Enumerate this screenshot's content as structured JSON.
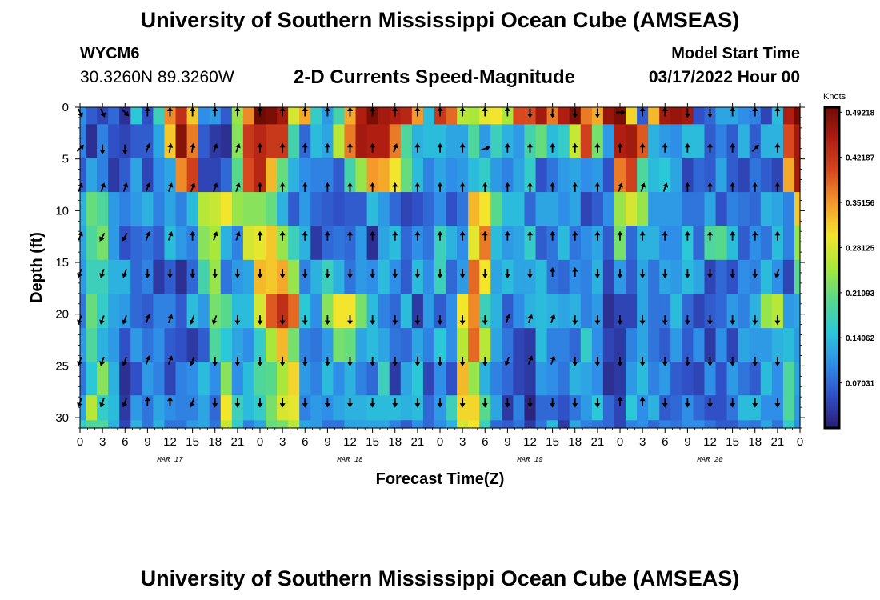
{
  "header": {
    "title": "University of Southern Mississippi Ocean Cube (AMSEAS)",
    "station_id": "WYCM6",
    "coordinates": "30.3260N  89.3260W",
    "plot_title": "2-D Currents Speed-Magnitude",
    "model_start_label": "Model Start Time",
    "model_start_date": "03/17/2022 Hour 00"
  },
  "footer": {
    "title": "University of Southern Mississippi Ocean Cube (AMSEAS)"
  },
  "colors": {
    "colormap": [
      "#2a1a6e",
      "#3050c8",
      "#2f8ee8",
      "#2bc8d8",
      "#57d98d",
      "#a8e83a",
      "#f3e52c",
      "#f59a2a",
      "#d8491f",
      "#b01e12",
      "#6e0b02"
    ]
  },
  "chart_data": {
    "type": "heatmap",
    "title": "2-D Currents Speed-Magnitude",
    "xlabel": "Forecast Time(Z)",
    "ylabel": "Depth (ft)",
    "x_ticks": [
      "0",
      "3",
      "6",
      "9",
      "12",
      "15",
      "18",
      "21",
      "0",
      "3",
      "6",
      "9",
      "12",
      "15",
      "18",
      "21",
      "0",
      "3",
      "6",
      "9",
      "12",
      "15",
      "18",
      "21",
      "0",
      "3",
      "6",
      "9",
      "12",
      "15",
      "18",
      "21",
      "0"
    ],
    "date_labels": [
      {
        "label": "MAR 17",
        "hour": 12
      },
      {
        "label": "MAR 18",
        "hour": 36
      },
      {
        "label": "MAR 19",
        "hour": 60
      },
      {
        "label": "MAR 20",
        "hour": 84
      }
    ],
    "xlim": [
      0,
      96
    ],
    "ylim": [
      0,
      31
    ],
    "y_ticks": [
      "0",
      "5",
      "10",
      "15",
      "20",
      "25",
      "30"
    ],
    "colorbar": {
      "unit": "Knots",
      "range": [
        0,
        0.5
      ],
      "ticks": [
        "0.49218",
        "0.42187",
        "0.35156",
        "0.28125",
        "0.21093",
        "0.14062",
        "0.07031"
      ],
      "tick_values": [
        0.49218,
        0.42187,
        0.35156,
        0.28125,
        0.21093,
        0.14062,
        0.07031
      ]
    },
    "hours": [
      0,
      1.5,
      3,
      4.5,
      6,
      7.5,
      9,
      10.5,
      12,
      13.5,
      15,
      16.5,
      18,
      19.5,
      21,
      22.5,
      24,
      25.5,
      27,
      28.5,
      30,
      31.5,
      33,
      34.5,
      36,
      37.5,
      39,
      40.5,
      42,
      43.5,
      45,
      46.5,
      48,
      49.5,
      51,
      52.5,
      54,
      55.5,
      57,
      58.5,
      60,
      61.5,
      63,
      64.5,
      66,
      67.5,
      69,
      70.5,
      72,
      73.5,
      75,
      76.5,
      78,
      79.5,
      81,
      82.5,
      84,
      85.5,
      87,
      88.5,
      90,
      91.5,
      93,
      94.5,
      96
    ],
    "depths_ft": [
      0,
      3.3,
      6.6,
      9.8,
      13.1,
      16.4,
      19.7,
      23,
      26.2,
      29.5,
      31
    ],
    "speed_knots": [
      [
        0.1,
        0.06,
        0.04,
        0.07,
        0.02,
        0.15,
        0.05,
        0.17,
        0.36,
        0.43,
        0.32,
        0.1,
        0.11,
        0.06,
        0.24,
        0.36,
        0.5,
        0.49,
        0.46,
        0.28,
        0.34,
        0.16,
        0.11,
        0.18,
        0.34,
        0.45,
        0.49,
        0.46,
        0.45,
        0.44,
        0.35,
        0.14,
        0.42,
        0.38,
        0.26,
        0.25,
        0.29,
        0.3,
        0.25,
        0.4,
        0.4,
        0.46,
        0.37,
        0.45,
        0.49,
        0.37,
        0.34,
        0.47,
        0.49,
        0.31,
        0.06,
        0.33,
        0.46,
        0.47,
        0.46,
        0.05,
        0.07,
        0.12,
        0.12,
        0.1,
        0.09,
        0.04,
        0.14,
        0.45,
        0.5
      ],
      [
        0.09,
        0.02,
        0.09,
        0.05,
        0.04,
        0.06,
        0.06,
        0.12,
        0.32,
        0.48,
        0.37,
        0.06,
        0.03,
        0.02,
        0.23,
        0.42,
        0.44,
        0.42,
        0.42,
        0.18,
        0.07,
        0.14,
        0.12,
        0.26,
        0.37,
        0.46,
        0.45,
        0.45,
        0.37,
        0.19,
        0.13,
        0.14,
        0.14,
        0.12,
        0.12,
        0.19,
        0.11,
        0.17,
        0.13,
        0.11,
        0.18,
        0.21,
        0.14,
        0.16,
        0.27,
        0.41,
        0.22,
        0.11,
        0.45,
        0.46,
        0.39,
        0.13,
        0.11,
        0.1,
        0.14,
        0.14,
        0.06,
        0.09,
        0.06,
        0.13,
        0.06,
        0.13,
        0.13,
        0.4,
        0.46
      ],
      [
        0.06,
        0.12,
        0.09,
        0.03,
        0.06,
        0.12,
        0.04,
        0.1,
        0.12,
        0.36,
        0.41,
        0.04,
        0.04,
        0.07,
        0.2,
        0.4,
        0.44,
        0.33,
        0.21,
        0.13,
        0.1,
        0.09,
        0.09,
        0.06,
        0.18,
        0.24,
        0.35,
        0.34,
        0.3,
        0.21,
        0.14,
        0.09,
        0.12,
        0.1,
        0.11,
        0.14,
        0.16,
        0.11,
        0.09,
        0.12,
        0.16,
        0.05,
        0.08,
        0.11,
        0.12,
        0.1,
        0.11,
        0.05,
        0.37,
        0.41,
        0.19,
        0.14,
        0.15,
        0.12,
        0.04,
        0.07,
        0.06,
        0.12,
        0.06,
        0.04,
        0.08,
        0.06,
        0.04,
        0.34,
        0.46
      ],
      [
        0.13,
        0.21,
        0.19,
        0.11,
        0.09,
        0.11,
        0.13,
        0.09,
        0.12,
        0.09,
        0.14,
        0.26,
        0.27,
        0.3,
        0.24,
        0.23,
        0.23,
        0.21,
        0.13,
        0.06,
        0.11,
        0.07,
        0.06,
        0.05,
        0.06,
        0.06,
        0.14,
        0.11,
        0.07,
        0.04,
        0.05,
        0.07,
        0.1,
        0.05,
        0.08,
        0.33,
        0.3,
        0.2,
        0.14,
        0.14,
        0.07,
        0.12,
        0.12,
        0.1,
        0.12,
        0.04,
        0.06,
        0.1,
        0.24,
        0.28,
        0.24,
        0.11,
        0.11,
        0.11,
        0.08,
        0.08,
        0.12,
        0.05,
        0.09,
        0.08,
        0.07,
        0.13,
        0.12,
        0.09,
        0.32
      ],
      [
        0.12,
        0.19,
        0.22,
        0.11,
        0.05,
        0.07,
        0.08,
        0.06,
        0.14,
        0.11,
        0.09,
        0.23,
        0.25,
        0.13,
        0.09,
        0.28,
        0.29,
        0.32,
        0.24,
        0.17,
        0.13,
        0.03,
        0.07,
        0.08,
        0.07,
        0.11,
        0.02,
        0.12,
        0.14,
        0.07,
        0.1,
        0.08,
        0.17,
        0.13,
        0.1,
        0.29,
        0.37,
        0.14,
        0.11,
        0.12,
        0.16,
        0.06,
        0.08,
        0.14,
        0.08,
        0.1,
        0.12,
        0.06,
        0.22,
        0.07,
        0.13,
        0.13,
        0.1,
        0.1,
        0.15,
        0.07,
        0.19,
        0.2,
        0.14,
        0.06,
        0.1,
        0.08,
        0.14,
        0.09,
        0.24
      ],
      [
        0.11,
        0.17,
        0.17,
        0.13,
        0.13,
        0.07,
        0.09,
        0.03,
        0.06,
        0.02,
        0.07,
        0.18,
        0.24,
        0.08,
        0.11,
        0.12,
        0.33,
        0.32,
        0.34,
        0.24,
        0.09,
        0.13,
        0.17,
        0.13,
        0.08,
        0.11,
        0.1,
        0.14,
        0.1,
        0.06,
        0.14,
        0.1,
        0.17,
        0.07,
        0.11,
        0.38,
        0.3,
        0.12,
        0.14,
        0.12,
        0.12,
        0.14,
        0.08,
        0.07,
        0.1,
        0.09,
        0.13,
        0.04,
        0.11,
        0.06,
        0.12,
        0.08,
        0.12,
        0.11,
        0.14,
        0.12,
        0.04,
        0.07,
        0.05,
        0.1,
        0.09,
        0.14,
        0.1,
        0.04,
        0.2
      ],
      [
        0.08,
        0.21,
        0.16,
        0.12,
        0.11,
        0.07,
        0.06,
        0.09,
        0.09,
        0.06,
        0.14,
        0.11,
        0.22,
        0.2,
        0.14,
        0.14,
        0.28,
        0.39,
        0.43,
        0.38,
        0.15,
        0.1,
        0.23,
        0.3,
        0.3,
        0.22,
        0.14,
        0.09,
        0.07,
        0.14,
        0.03,
        0.11,
        0.06,
        0.1,
        0.3,
        0.36,
        0.17,
        0.13,
        0.06,
        0.1,
        0.13,
        0.14,
        0.13,
        0.12,
        0.13,
        0.09,
        0.11,
        0.02,
        0.04,
        0.04,
        0.12,
        0.08,
        0.08,
        0.14,
        0.07,
        0.04,
        0.06,
        0.07,
        0.11,
        0.09,
        0.13,
        0.24,
        0.26,
        0.11,
        0.12
      ],
      [
        0.11,
        0.19,
        0.13,
        0.11,
        0.05,
        0.11,
        0.08,
        0.1,
        0.06,
        0.05,
        0.03,
        0.06,
        0.19,
        0.15,
        0.12,
        0.1,
        0.16,
        0.25,
        0.33,
        0.22,
        0.09,
        0.08,
        0.11,
        0.22,
        0.21,
        0.12,
        0.14,
        0.12,
        0.08,
        0.07,
        0.12,
        0.09,
        0.15,
        0.1,
        0.26,
        0.38,
        0.26,
        0.12,
        0.08,
        0.04,
        0.03,
        0.14,
        0.09,
        0.09,
        0.07,
        0.16,
        0.1,
        0.04,
        0.03,
        0.09,
        0.12,
        0.08,
        0.06,
        0.11,
        0.06,
        0.1,
        0.03,
        0.1,
        0.04,
        0.12,
        0.11,
        0.11,
        0.13,
        0.14,
        0.11
      ],
      [
        0.08,
        0.15,
        0.23,
        0.13,
        0.02,
        0.05,
        0.11,
        0.09,
        0.04,
        0.09,
        0.1,
        0.14,
        0.1,
        0.23,
        0.1,
        0.14,
        0.19,
        0.2,
        0.25,
        0.31,
        0.11,
        0.09,
        0.14,
        0.1,
        0.13,
        0.09,
        0.07,
        0.17,
        0.03,
        0.12,
        0.15,
        0.04,
        0.1,
        0.05,
        0.33,
        0.24,
        0.13,
        0.09,
        0.07,
        0.04,
        0.03,
        0.11,
        0.1,
        0.08,
        0.13,
        0.12,
        0.1,
        0.02,
        0.03,
        0.11,
        0.14,
        0.09,
        0.11,
        0.06,
        0.05,
        0.04,
        0.1,
        0.05,
        0.11,
        0.08,
        0.06,
        0.14,
        0.1,
        0.19,
        0.12
      ],
      [
        0.12,
        0.26,
        0.16,
        0.14,
        0.03,
        0.11,
        0.08,
        0.12,
        0.1,
        0.09,
        0.09,
        0.12,
        0.07,
        0.3,
        0.17,
        0.14,
        0.16,
        0.22,
        0.28,
        0.29,
        0.09,
        0.11,
        0.1,
        0.12,
        0.13,
        0.13,
        0.14,
        0.14,
        0.14,
        0.13,
        0.14,
        0.07,
        0.11,
        0.17,
        0.31,
        0.31,
        0.2,
        0.12,
        0.03,
        0.09,
        0.01,
        0.07,
        0.07,
        0.05,
        0.08,
        0.11,
        0.15,
        0.07,
        0.04,
        0.15,
        0.1,
        0.13,
        0.06,
        0.07,
        0.1,
        0.07,
        0.05,
        0.05,
        0.08,
        0.14,
        0.14,
        0.1,
        0.1,
        0.19,
        0.11
      ],
      [
        0.16,
        0.19,
        0.19,
        0.13,
        0.04,
        0.13,
        0.08,
        0.13,
        0.08,
        0.08,
        0.11,
        0.12,
        0.08,
        0.27,
        0.16,
        0.09,
        0.12,
        0.21,
        0.22,
        0.26,
        0.12,
        0.11,
        0.08,
        0.08,
        0.12,
        0.12,
        0.12,
        0.12,
        0.09,
        0.06,
        0.1,
        0.07,
        0.1,
        0.13,
        0.28,
        0.3,
        0.17,
        0.07,
        0.06,
        0.08,
        0.03,
        0.08,
        0.14,
        0.03,
        0.12,
        0.09,
        0.08,
        0.07,
        0.04,
        0.09,
        0.1,
        0.07,
        0.09,
        0.08,
        0.1,
        0.1,
        0.08,
        0.06,
        0.06,
        0.09,
        0.08,
        0.12,
        0.08,
        0.16,
        0.1
      ]
    ],
    "arrows": {
      "hours": [
        0,
        3,
        6,
        9,
        12,
        15,
        18,
        21,
        24,
        27,
        30,
        33,
        36,
        39,
        42,
        45,
        48,
        51,
        54,
        57,
        60,
        63,
        66,
        69,
        72,
        75,
        78,
        81,
        84,
        87,
        90,
        93
      ],
      "depths_ft": [
        0.5,
        4,
        7.8,
        12.5,
        16,
        20.5,
        24.5,
        28.5
      ],
      "direction_deg": [
        [
          155,
          155,
          135,
          0,
          0,
          0,
          0,
          0,
          0,
          0,
          0,
          0,
          0,
          0,
          0,
          0,
          0,
          0,
          0,
          0,
          180,
          180,
          180,
          180,
          90,
          0,
          0,
          180,
          180,
          0,
          0,
          0
        ],
        [
          45,
          180,
          180,
          20,
          10,
          10,
          20,
          20,
          0,
          0,
          0,
          0,
          0,
          0,
          20,
          0,
          0,
          0,
          70,
          0,
          0,
          0,
          0,
          0,
          0,
          0,
          0,
          0,
          0,
          0,
          45,
          0
        ],
        [
          20,
          20,
          20,
          20,
          20,
          20,
          20,
          20,
          0,
          0,
          0,
          0,
          0,
          0,
          0,
          0,
          0,
          0,
          0,
          0,
          0,
          0,
          0,
          0,
          20,
          20,
          20,
          0,
          0,
          0,
          0,
          0
        ],
        [
          20,
          210,
          210,
          20,
          20,
          0,
          20,
          20,
          0,
          0,
          0,
          0,
          0,
          0,
          0,
          0,
          0,
          0,
          0,
          0,
          0,
          0,
          0,
          0,
          0,
          0,
          0,
          0,
          0,
          0,
          0,
          0
        ],
        [
          200,
          200,
          200,
          180,
          180,
          180,
          180,
          180,
          180,
          180,
          180,
          180,
          180,
          180,
          180,
          180,
          180,
          180,
          180,
          180,
          180,
          0,
          0,
          180,
          180,
          180,
          180,
          180,
          180,
          180,
          180,
          200
        ],
        [
          200,
          200,
          200,
          20,
          20,
          200,
          200,
          180,
          180,
          180,
          180,
          180,
          180,
          180,
          180,
          180,
          180,
          180,
          180,
          20,
          20,
          20,
          180,
          180,
          180,
          180,
          180,
          180,
          180,
          180,
          180,
          180
        ],
        [
          200,
          200,
          200,
          20,
          20,
          200,
          180,
          180,
          180,
          180,
          180,
          180,
          180,
          180,
          180,
          180,
          180,
          180,
          180,
          200,
          20,
          20,
          180,
          180,
          180,
          180,
          180,
          180,
          180,
          180,
          180,
          180
        ],
        [
          200,
          200,
          200,
          0,
          0,
          200,
          180,
          180,
          180,
          180,
          180,
          180,
          180,
          180,
          180,
          180,
          180,
          180,
          180,
          180,
          180,
          180,
          180,
          180,
          0,
          0,
          180,
          180,
          180,
          180,
          180,
          180
        ]
      ]
    }
  }
}
